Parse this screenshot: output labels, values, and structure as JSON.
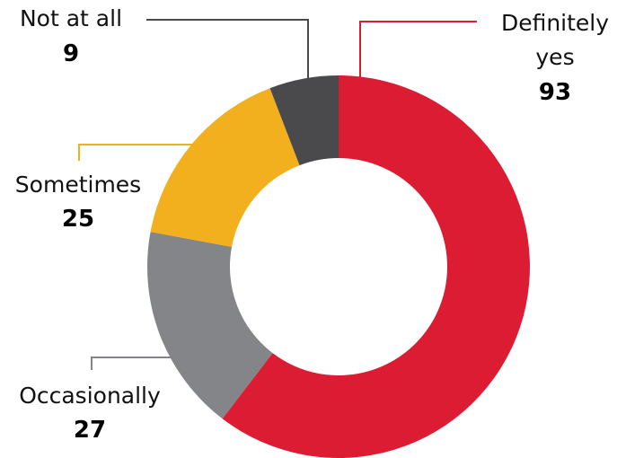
{
  "chart_data": {
    "type": "pie",
    "donut": true,
    "categories": [
      "Definitely yes",
      "Occasionally",
      "Sometimes",
      "Not at all"
    ],
    "values": [
      93,
      27,
      25,
      9
    ],
    "colors": [
      "#dc1c33",
      "#848589",
      "#f2b01f",
      "#4a4a4c"
    ],
    "label_lines": [
      [
        "Definitely",
        "yes"
      ],
      [
        "Occasionally"
      ],
      [
        "Sometimes"
      ],
      [
        "Not at all"
      ]
    ],
    "value_labels": [
      "93",
      "27",
      "25",
      "9"
    ],
    "title": ""
  }
}
